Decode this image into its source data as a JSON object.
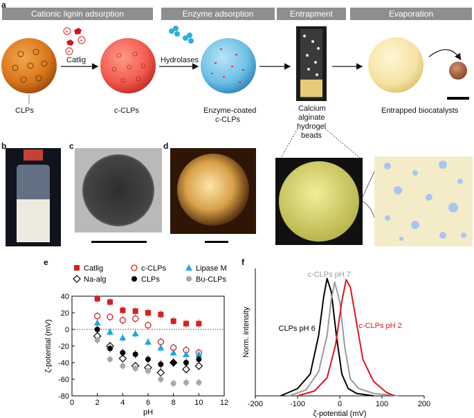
{
  "panel_letters": {
    "a": "a",
    "b": "b",
    "c": "c",
    "d": "d",
    "e": "e",
    "f": "f"
  },
  "headers": [
    "Cationic lignin adsorption",
    "Enzyme adsorption",
    "Entrapment",
    "Evaporation"
  ],
  "arrow_labels": {
    "catlig": "Catlig",
    "hydrolases": "Hydrolases"
  },
  "stage_labels": {
    "clps": "CLPs",
    "cclps": "c-CLPs",
    "enzyme_line1": "Enzyme-coated",
    "enzyme_line2": "c-CLPs",
    "beads_line1": "Calcium",
    "beads_line2": "alginate",
    "beads_line3": "hydrogel",
    "beads_line4": "beads",
    "entrapped": "Entrapped biocatalysts"
  },
  "colors": {
    "catlig": "#d42020",
    "cclps": "#d42020",
    "lipase": "#1fa8e0",
    "naalg": "#000000",
    "clps": "#000000",
    "buclps": "#a8a8a8",
    "header": "#8e8e8e"
  },
  "chart_data": [
    {
      "type": "scatter",
      "panel": "e",
      "xlabel": "pH",
      "ylabel": "ζ-potential (mV)",
      "xlim": [
        0,
        12
      ],
      "ylim": [
        -80,
        40
      ],
      "xticks": [
        "0",
        "2",
        "4",
        "6",
        "8",
        "10",
        "12"
      ],
      "yticks": [
        "-80",
        "-60",
        "-40",
        "-20",
        "0",
        "20",
        "40"
      ],
      "legend": [
        "Catlig",
        "c-CLPs",
        "Lipase M",
        "Na-alg",
        "CLPs",
        "Bu-CLPs"
      ],
      "series": [
        {
          "name": "Catlig",
          "marker": "filled-square",
          "x": [
            2,
            3,
            4,
            5,
            6,
            7,
            8,
            9,
            10
          ],
          "y": [
            37,
            33,
            23,
            22,
            20,
            18,
            10,
            7,
            7
          ]
        },
        {
          "name": "c-CLPs",
          "marker": "open-circle",
          "x": [
            2,
            3,
            4,
            5,
            6,
            7,
            8,
            9,
            10
          ],
          "y": [
            16,
            15,
            11,
            13,
            5,
            -15,
            -22,
            -25,
            -28
          ]
        },
        {
          "name": "Lipase M",
          "marker": "filled-triangle",
          "x": [
            2,
            3,
            4,
            5,
            6,
            7,
            8,
            9,
            10
          ],
          "y": [
            8,
            -3,
            -10,
            -5,
            -15,
            -22,
            -28,
            -30,
            -30
          ]
        },
        {
          "name": "Na-alg",
          "marker": "open-diamond",
          "x": [
            2,
            3,
            4,
            5,
            6,
            7,
            8,
            9,
            10
          ],
          "y": [
            -8,
            -20,
            -35,
            -44,
            -46,
            -52,
            -40,
            -48,
            -44
          ]
        },
        {
          "name": "CLPs",
          "marker": "filled-circle",
          "x": [
            2,
            3,
            4,
            5,
            6,
            7,
            8,
            9,
            10
          ],
          "y": [
            0,
            -23,
            -28,
            -30,
            -36,
            -42,
            -40,
            -40,
            -36
          ]
        },
        {
          "name": "Bu-CLPs",
          "marker": "gray-circle",
          "x": [
            2,
            3,
            4,
            5,
            6,
            7,
            8,
            9,
            10
          ],
          "y": [
            -13,
            -36,
            -44,
            -47,
            -50,
            -60,
            -65,
            -64,
            -64
          ]
        }
      ]
    },
    {
      "type": "line",
      "panel": "f",
      "xlabel": "ζ-potential (mV)",
      "ylabel": "Norm. intensity",
      "xlim": [
        -200,
        200
      ],
      "xticks": [
        "-200",
        "-100",
        "0",
        "100",
        "200"
      ],
      "annotations": [
        "c-CLPs pH 7",
        "c-CLPs pH 2",
        "CLPs pH 6"
      ],
      "series": [
        {
          "name": "CLPs pH 6",
          "color": "#000000",
          "x": [
            -140,
            -100,
            -70,
            -50,
            -38,
            -30,
            -20,
            -8,
            5,
            20,
            40,
            80
          ],
          "y": [
            0,
            0.06,
            0.18,
            0.5,
            0.82,
            0.97,
            0.86,
            0.5,
            0.18,
            0.06,
            0.02,
            0
          ]
        },
        {
          "name": "c-CLPs pH 7",
          "color": "#9a9a9a",
          "x": [
            -120,
            -80,
            -50,
            -30,
            -20,
            -12,
            0,
            12,
            25,
            45,
            80,
            140
          ],
          "y": [
            0,
            0.05,
            0.2,
            0.5,
            0.8,
            0.94,
            0.78,
            0.4,
            0.14,
            0.06,
            0.02,
            0
          ]
        },
        {
          "name": "c-CLPs pH 2",
          "color": "#e0141c",
          "x": [
            -100,
            -60,
            -30,
            -10,
            5,
            15,
            25,
            40,
            55,
            80,
            110,
            130
          ],
          "y": [
            0,
            0.04,
            0.15,
            0.42,
            0.78,
            0.96,
            0.9,
            0.6,
            0.3,
            0.12,
            0.03,
            0
          ]
        }
      ]
    }
  ]
}
